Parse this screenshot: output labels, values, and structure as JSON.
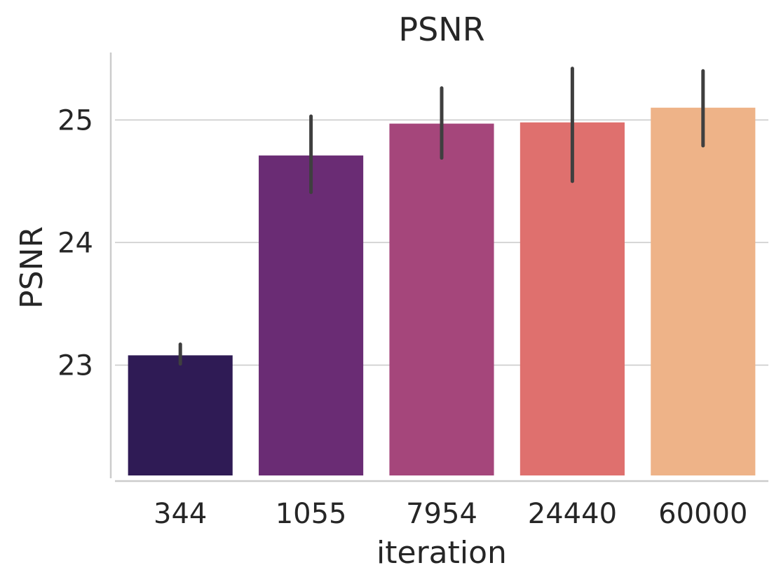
{
  "chart_data": {
    "type": "bar",
    "title": "PSNR",
    "xlabel": "iteration",
    "ylabel": "PSNR",
    "categories": [
      "344",
      "1055",
      "7954",
      "24440",
      "60000"
    ],
    "values": [
      23.08,
      24.71,
      24.97,
      24.98,
      25.1
    ],
    "error_low": [
      23.01,
      24.41,
      24.69,
      24.5,
      24.79
    ],
    "error_high": [
      23.17,
      25.03,
      25.26,
      25.42,
      25.4
    ],
    "colors": [
      "#2f1b55",
      "#6a2c74",
      "#a5467b",
      "#df706e",
      "#eeb388"
    ],
    "error_color": "#3f3f3f",
    "yticks": [
      23,
      24,
      25
    ],
    "ylim": [
      22.1,
      25.55
    ],
    "grid": "horizontal",
    "legend": "none"
  }
}
